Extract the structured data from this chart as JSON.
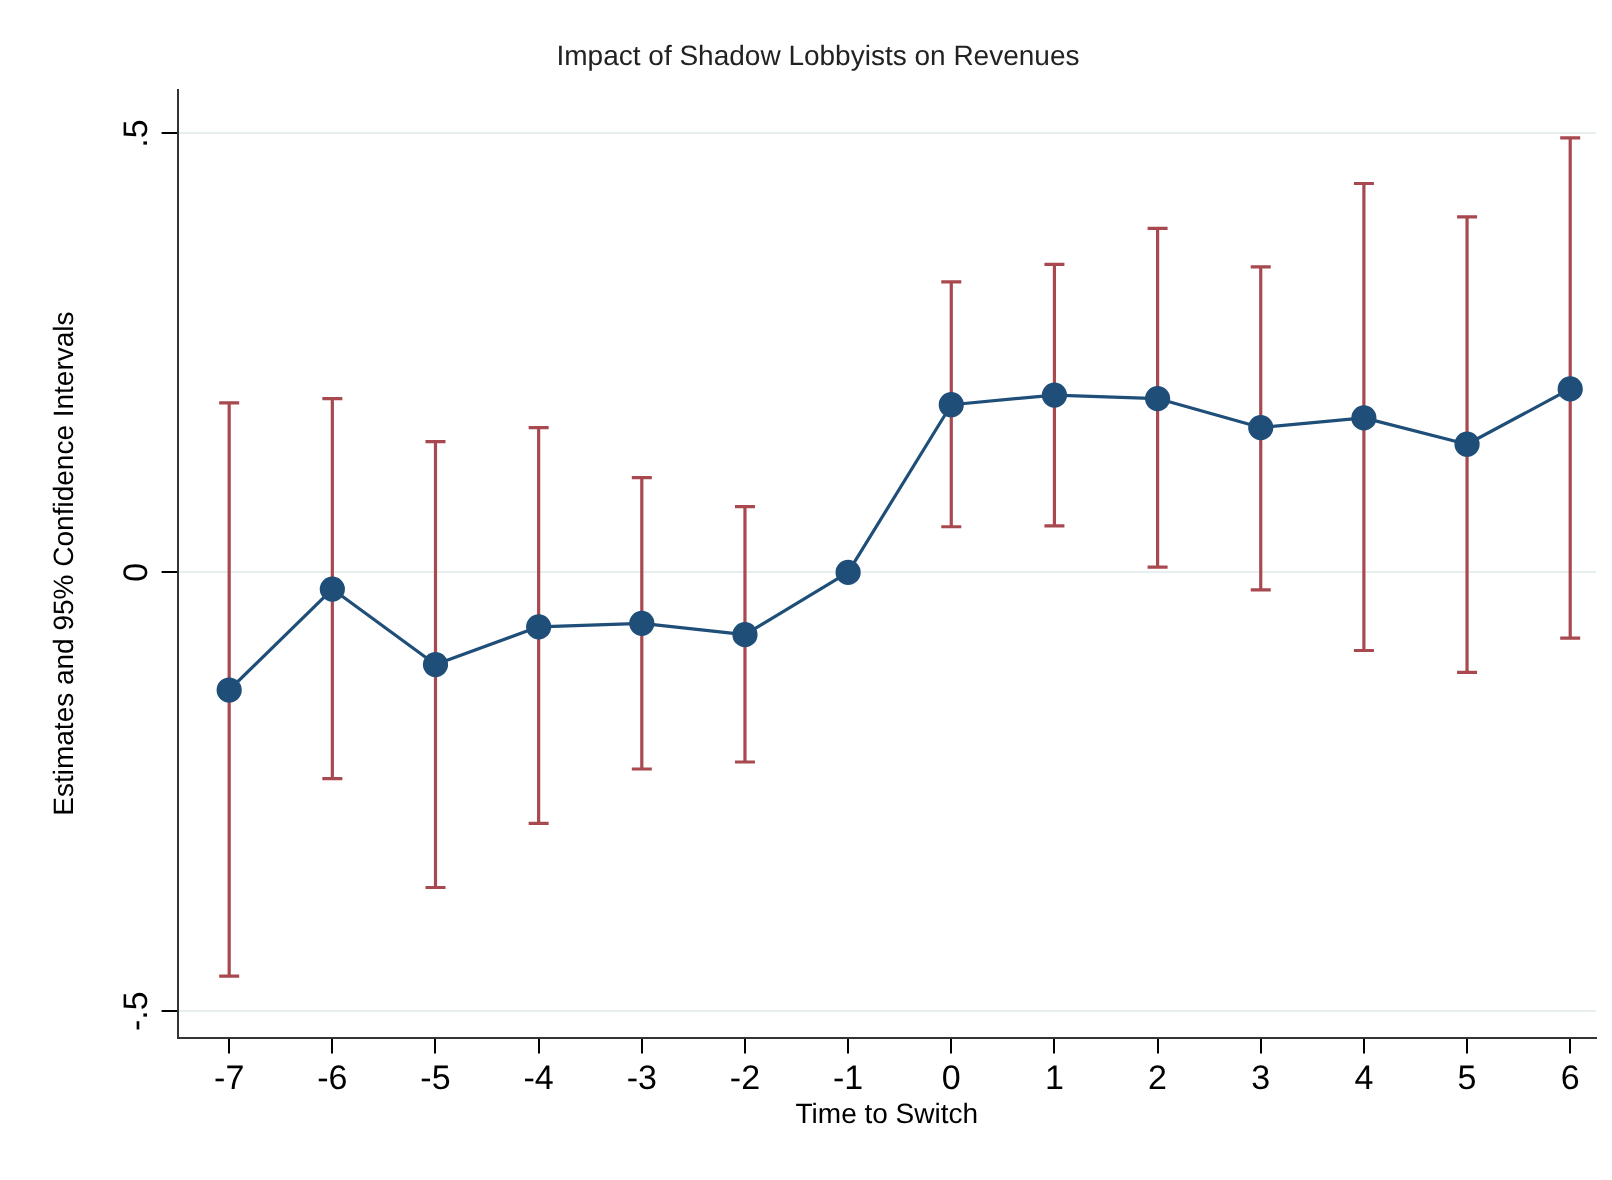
{
  "chart_data": {
    "type": "line",
    "title": "Impact of Shadow Lobbyists on Revenues",
    "xlabel": "Time to Switch",
    "ylabel": "Estimates and 95% Confidence Intervals",
    "x": [
      -7,
      -6,
      -5,
      -4,
      -3,
      -2,
      -1,
      0,
      1,
      2,
      3,
      4,
      5,
      6
    ],
    "series": [
      {
        "color": "#1f4e79",
        "values": [
          -0.134,
          -0.019,
          -0.105,
          -0.062,
          -0.058,
          -0.071,
          0,
          0.191,
          0.202,
          0.198,
          0.165,
          0.176,
          0.146,
          0.209
        ],
        "errors": [
          [
            -0.46,
            0.193
          ],
          [
            -0.235,
            0.198
          ],
          [
            -0.359,
            0.149
          ],
          [
            -0.286,
            0.165
          ],
          [
            -0.224,
            0.108
          ],
          [
            -0.216,
            0.075
          ],
          null,
          [
            0.052,
            0.331
          ],
          [
            0.053,
            0.351
          ],
          [
            0.006,
            0.392
          ],
          [
            -0.02,
            0.348
          ],
          [
            -0.089,
            0.443
          ],
          [
            -0.114,
            0.405
          ],
          [
            -0.075,
            0.495
          ]
        ]
      }
    ],
    "xlim": [
      -7.5,
      6.25
    ],
    "xticks": [
      -7,
      -6,
      -5,
      -4,
      -3,
      -2,
      -1,
      0,
      1,
      2,
      3,
      4,
      5,
      6
    ],
    "ylim": [
      -0.53,
      0.55
    ],
    "yticks": [
      {
        "value": -0.5,
        "label": "-.5"
      },
      {
        "value": 0,
        "label": "0"
      },
      {
        "value": 0.5,
        "label": ".5"
      }
    ],
    "grid": "y",
    "legend": false,
    "marker": "circle",
    "line_style": "solid"
  }
}
